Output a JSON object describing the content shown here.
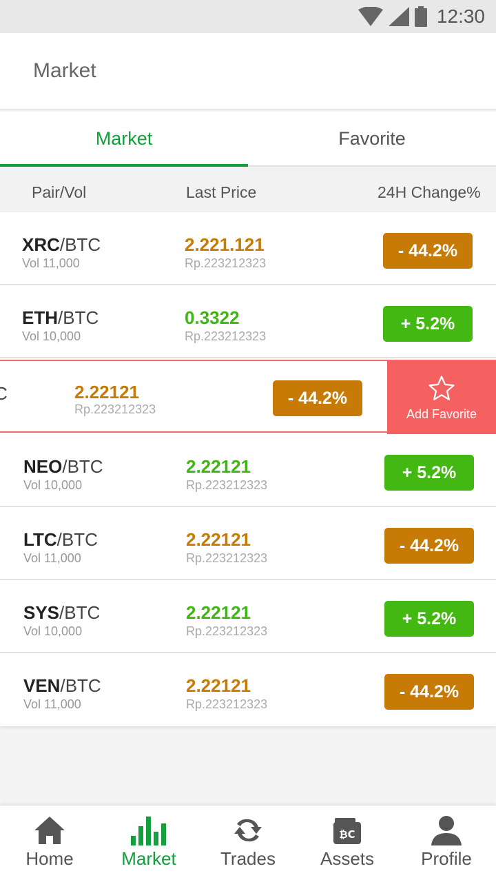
{
  "status": {
    "time": "12:30"
  },
  "header": {
    "title": "Market"
  },
  "tabs": [
    {
      "label": "Market"
    },
    {
      "label": "Favorite"
    }
  ],
  "columns": {
    "pair": "Pair/Vol",
    "price": "Last Price",
    "change": "24H Change%"
  },
  "rows": [
    {
      "base": "XRC",
      "quote": "/BTC",
      "vol": "Vol 11,000",
      "price": "2.221.121",
      "rp": "Rp.223212323",
      "change": "- 44.2%",
      "trend": "down"
    },
    {
      "base": "ETH",
      "quote": "/BTC",
      "vol": "Vol 10,000",
      "price": "0.3322",
      "rp": "Rp.223212323",
      "change": "+ 5.2%",
      "trend": "up"
    },
    {
      "base": "",
      "quote": "C",
      "vol": "",
      "price": "2.22121",
      "rp": "Rp.223212323",
      "change": "- 44.2%",
      "trend": "down",
      "swiped": true,
      "action_label": "Add Favorite"
    },
    {
      "base": "NEO",
      "quote": "/BTC",
      "vol": "Vol 10,000",
      "price": "2.22121",
      "rp": "Rp.223212323",
      "change": "+ 5.2%",
      "trend": "up"
    },
    {
      "base": "LTC",
      "quote": "/BTC",
      "vol": "Vol 11,000",
      "price": "2.22121",
      "rp": "Rp.223212323",
      "change": "- 44.2%",
      "trend": "down"
    },
    {
      "base": "SYS",
      "quote": "/BTC",
      "vol": "Vol 10,000",
      "price": "2.22121",
      "rp": "Rp.223212323",
      "change": "+ 5.2%",
      "trend": "up"
    },
    {
      "base": "VEN",
      "quote": "/BTC",
      "vol": "Vol 11,000",
      "price": "2.22121",
      "rp": "Rp.223212323",
      "change": "- 44.2%",
      "trend": "down"
    }
  ],
  "nav": [
    {
      "label": "Home",
      "icon": "home-icon"
    },
    {
      "label": "Market",
      "icon": "bar-chart-icon",
      "active": true
    },
    {
      "label": "Trades",
      "icon": "sync-icon"
    },
    {
      "label": "Assets",
      "icon": "wallet-icon"
    },
    {
      "label": "Profile",
      "icon": "profile-icon"
    }
  ],
  "colors": {
    "accent": "#13a03c",
    "down": "#c77b06",
    "up": "#44b812",
    "swipe_action": "#f56060"
  }
}
